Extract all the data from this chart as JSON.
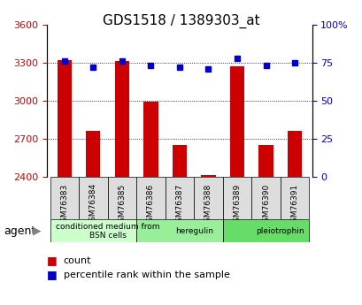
{
  "title": "GDS1518 / 1389303_at",
  "samples": [
    "GSM76383",
    "GSM76384",
    "GSM76385",
    "GSM76386",
    "GSM76387",
    "GSM76388",
    "GSM76389",
    "GSM76390",
    "GSM76391"
  ],
  "counts": [
    3320,
    2760,
    3310,
    2995,
    2650,
    2415,
    3270,
    2650,
    2760
  ],
  "percentiles": [
    76,
    72,
    76,
    73,
    72,
    71,
    78,
    73,
    75
  ],
  "ylim_left": [
    2400,
    3600
  ],
  "ylim_right": [
    0,
    100
  ],
  "yticks_left": [
    2400,
    2700,
    3000,
    3300,
    3600
  ],
  "yticks_right": [
    0,
    25,
    50,
    75,
    100
  ],
  "groups": [
    {
      "label": "conditioned medium from\nBSN cells",
      "start": 0,
      "end": 3,
      "color": "#ccffcc"
    },
    {
      "label": "heregulin",
      "start": 3,
      "end": 6,
      "color": "#99ee99"
    },
    {
      "label": "pleiotrophin",
      "start": 6,
      "end": 9,
      "color": "#66dd66"
    }
  ],
  "bar_color": "#cc0000",
  "dot_color": "#0000cc",
  "bar_width": 0.5,
  "grid_color": "#000000",
  "background_color": "#ffffff",
  "plot_bg": "#ffffff",
  "tick_color_left": "#cc0000",
  "tick_color_right": "#0000cc",
  "xlabel_color": "#000000",
  "agent_label": "agent",
  "legend_count_color": "#cc0000",
  "legend_pct_color": "#0000cc"
}
